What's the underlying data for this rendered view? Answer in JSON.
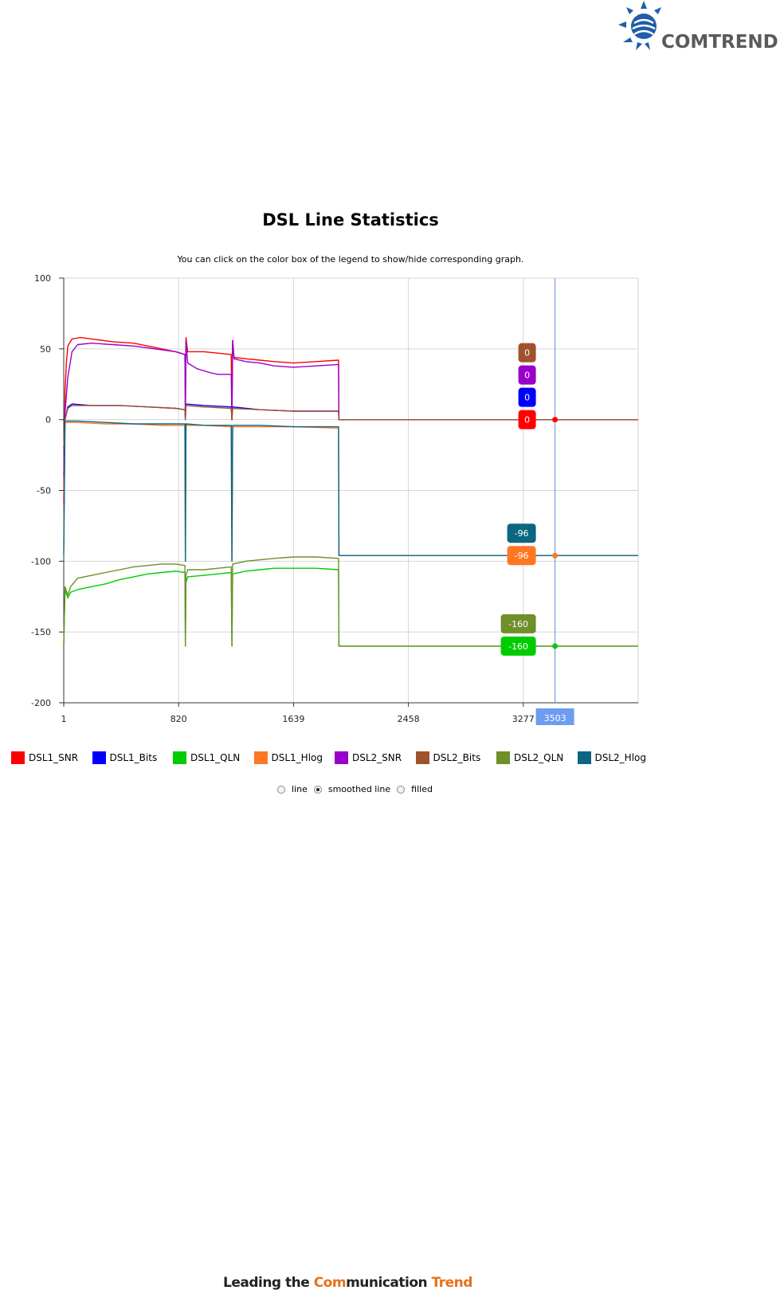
{
  "brand": {
    "name": "COMTREND",
    "colors": {
      "logo_blue": "#1f5fa8",
      "logo_grey": "#5a5a5a",
      "accent_orange": "#e8701b"
    }
  },
  "page": {
    "title": "DSL Line Statistics",
    "subtitle": "You can click on the color box of the legend to show/hide corresponding graph."
  },
  "display_modes": {
    "options": [
      {
        "label": "line",
        "checked": false
      },
      {
        "label": "smoothed line",
        "checked": true
      },
      {
        "label": "filled",
        "checked": false
      }
    ]
  },
  "footer": {
    "part1": "Leading the ",
    "part2a": "Com",
    "part2b": "munication",
    "part3": " Trend"
  },
  "chart_data": {
    "type": "line",
    "title": "",
    "xlabel": "",
    "ylabel": "",
    "xlim": [
      1,
      4096
    ],
    "ylim": [
      -200,
      100
    ],
    "x_ticks": [
      1,
      820,
      1639,
      2458,
      3277
    ],
    "y_ticks": [
      100,
      50,
      0,
      -50,
      -100,
      -150,
      -200
    ],
    "grid": true,
    "legend_position": "bottom",
    "hover": {
      "x": 3503,
      "label": "3503",
      "tooltips": [
        {
          "series": "DSL2_Bits",
          "value": "0"
        },
        {
          "series": "DSL2_SNR",
          "value": "0"
        },
        {
          "series": "DSL1_Bits",
          "value": "0"
        },
        {
          "series": "DSL1_SNR",
          "value": "0"
        },
        {
          "series": "DSL2_Hlog",
          "value": "-96"
        },
        {
          "series": "DSL1_Hlog",
          "value": "-96"
        },
        {
          "series": "DSL2_QLN",
          "value": "-160"
        },
        {
          "series": "DSL1_QLN",
          "value": "-160"
        }
      ]
    },
    "series": [
      {
        "name": "DSL1_SNR",
        "color": "#ff0000",
        "points": [
          [
            1,
            -60
          ],
          [
            10,
            20
          ],
          [
            20,
            40
          ],
          [
            30,
            52
          ],
          [
            60,
            57
          ],
          [
            120,
            58
          ],
          [
            200,
            57
          ],
          [
            350,
            55
          ],
          [
            500,
            54
          ],
          [
            650,
            51
          ],
          [
            800,
            48
          ],
          [
            865,
            46
          ],
          [
            868,
            0
          ],
          [
            872,
            58
          ],
          [
            885,
            48
          ],
          [
            1000,
            48
          ],
          [
            1100,
            47
          ],
          [
            1195,
            46
          ],
          [
            1200,
            0
          ],
          [
            1205,
            56
          ],
          [
            1215,
            44
          ],
          [
            1300,
            43
          ],
          [
            1400,
            42
          ],
          [
            1500,
            41
          ],
          [
            1639,
            40
          ],
          [
            1800,
            41
          ],
          [
            1960,
            42
          ],
          [
            1963,
            0
          ],
          [
            2458,
            0
          ],
          [
            3277,
            0
          ],
          [
            4096,
            0
          ]
        ]
      },
      {
        "name": "DSL1_Bits",
        "color": "#0000ff",
        "points": [
          [
            1,
            -20
          ],
          [
            10,
            0
          ],
          [
            30,
            9
          ],
          [
            60,
            11
          ],
          [
            200,
            10
          ],
          [
            400,
            10
          ],
          [
            600,
            9
          ],
          [
            800,
            8
          ],
          [
            865,
            7
          ],
          [
            868,
            0
          ],
          [
            872,
            11
          ],
          [
            1000,
            10
          ],
          [
            1195,
            9
          ],
          [
            1200,
            0
          ],
          [
            1205,
            9
          ],
          [
            1400,
            7
          ],
          [
            1639,
            6
          ],
          [
            1960,
            6
          ],
          [
            1963,
            0
          ],
          [
            4096,
            0
          ]
        ]
      },
      {
        "name": "DSL1_QLN",
        "color": "#00cc00",
        "points": [
          [
            1,
            -160
          ],
          [
            10,
            -120
          ],
          [
            30,
            -126
          ],
          [
            50,
            -122
          ],
          [
            100,
            -120
          ],
          [
            200,
            -118
          ],
          [
            300,
            -116
          ],
          [
            400,
            -113
          ],
          [
            500,
            -111
          ],
          [
            600,
            -109
          ],
          [
            700,
            -108
          ],
          [
            800,
            -107
          ],
          [
            865,
            -108
          ],
          [
            868,
            -160
          ],
          [
            872,
            -115
          ],
          [
            885,
            -111
          ],
          [
            1000,
            -110
          ],
          [
            1100,
            -109
          ],
          [
            1195,
            -108
          ],
          [
            1200,
            -160
          ],
          [
            1205,
            -109
          ],
          [
            1300,
            -107
          ],
          [
            1400,
            -106
          ],
          [
            1500,
            -105
          ],
          [
            1639,
            -105
          ],
          [
            1800,
            -105
          ],
          [
            1960,
            -106
          ],
          [
            1963,
            -160
          ],
          [
            2458,
            -160
          ],
          [
            3277,
            -160
          ],
          [
            4096,
            -160
          ]
        ]
      },
      {
        "name": "DSL1_Hlog",
        "color": "#ff7722",
        "points": [
          [
            1,
            -90
          ],
          [
            10,
            -2
          ],
          [
            100,
            -2
          ],
          [
            300,
            -3
          ],
          [
            500,
            -3
          ],
          [
            700,
            -4
          ],
          [
            865,
            -4
          ],
          [
            868,
            -100
          ],
          [
            872,
            -4
          ],
          [
            1000,
            -4
          ],
          [
            1195,
            -5
          ],
          [
            1200,
            -100
          ],
          [
            1205,
            -5
          ],
          [
            1400,
            -5
          ],
          [
            1639,
            -5
          ],
          [
            1960,
            -6
          ],
          [
            1963,
            -96
          ],
          [
            2458,
            -96
          ],
          [
            3277,
            -96
          ],
          [
            4096,
            -96
          ]
        ]
      },
      {
        "name": "DSL2_SNR",
        "color": "#9900cc",
        "points": [
          [
            1,
            -40
          ],
          [
            10,
            5
          ],
          [
            30,
            30
          ],
          [
            60,
            48
          ],
          [
            100,
            53
          ],
          [
            200,
            54
          ],
          [
            350,
            53
          ],
          [
            500,
            52
          ],
          [
            650,
            50
          ],
          [
            800,
            48
          ],
          [
            865,
            46
          ],
          [
            868,
            0
          ],
          [
            872,
            56
          ],
          [
            885,
            40
          ],
          [
            950,
            36
          ],
          [
            1050,
            33
          ],
          [
            1100,
            32
          ],
          [
            1195,
            32
          ],
          [
            1200,
            0
          ],
          [
            1205,
            56
          ],
          [
            1215,
            43
          ],
          [
            1300,
            41
          ],
          [
            1400,
            40
          ],
          [
            1500,
            38
          ],
          [
            1639,
            37
          ],
          [
            1800,
            38
          ],
          [
            1960,
            39
          ],
          [
            1963,
            0
          ],
          [
            2458,
            0
          ],
          [
            3277,
            0
          ],
          [
            4096,
            0
          ]
        ]
      },
      {
        "name": "DSL2_Bits",
        "color": "#a0522d",
        "points": [
          [
            1,
            -20
          ],
          [
            10,
            0
          ],
          [
            30,
            8
          ],
          [
            60,
            10
          ],
          [
            200,
            10
          ],
          [
            400,
            10
          ],
          [
            600,
            9
          ],
          [
            800,
            8
          ],
          [
            865,
            7
          ],
          [
            868,
            0
          ],
          [
            872,
            10
          ],
          [
            1000,
            9
          ],
          [
            1195,
            8
          ],
          [
            1200,
            0
          ],
          [
            1205,
            8
          ],
          [
            1400,
            7
          ],
          [
            1639,
            6
          ],
          [
            1960,
            6
          ],
          [
            1963,
            0
          ],
          [
            4096,
            0
          ]
        ]
      },
      {
        "name": "DSL2_QLN",
        "color": "#6e8f2a",
        "points": [
          [
            1,
            -160
          ],
          [
            10,
            -118
          ],
          [
            30,
            -124
          ],
          [
            50,
            -118
          ],
          [
            100,
            -112
          ],
          [
            200,
            -110
          ],
          [
            300,
            -108
          ],
          [
            400,
            -106
          ],
          [
            500,
            -104
          ],
          [
            600,
            -103
          ],
          [
            700,
            -102
          ],
          [
            800,
            -102
          ],
          [
            865,
            -103
          ],
          [
            868,
            -160
          ],
          [
            872,
            -110
          ],
          [
            885,
            -106
          ],
          [
            1000,
            -106
          ],
          [
            1100,
            -105
          ],
          [
            1195,
            -104
          ],
          [
            1200,
            -160
          ],
          [
            1205,
            -102
          ],
          [
            1300,
            -100
          ],
          [
            1400,
            -99
          ],
          [
            1500,
            -98
          ],
          [
            1639,
            -97
          ],
          [
            1800,
            -97
          ],
          [
            1960,
            -98
          ],
          [
            1963,
            -160
          ],
          [
            2458,
            -160
          ],
          [
            3277,
            -160
          ],
          [
            4096,
            -160
          ]
        ]
      },
      {
        "name": "DSL2_Hlog",
        "color": "#0b6680",
        "points": [
          [
            1,
            -95
          ],
          [
            10,
            -1
          ],
          [
            100,
            -1
          ],
          [
            300,
            -2
          ],
          [
            500,
            -3
          ],
          [
            700,
            -3
          ],
          [
            865,
            -3
          ],
          [
            868,
            -100
          ],
          [
            872,
            -3
          ],
          [
            1000,
            -4
          ],
          [
            1195,
            -4
          ],
          [
            1200,
            -100
          ],
          [
            1205,
            -4
          ],
          [
            1400,
            -4
          ],
          [
            1639,
            -5
          ],
          [
            1960,
            -5
          ],
          [
            1963,
            -96
          ],
          [
            2458,
            -96
          ],
          [
            3277,
            -96
          ],
          [
            4096,
            -96
          ]
        ]
      }
    ]
  }
}
